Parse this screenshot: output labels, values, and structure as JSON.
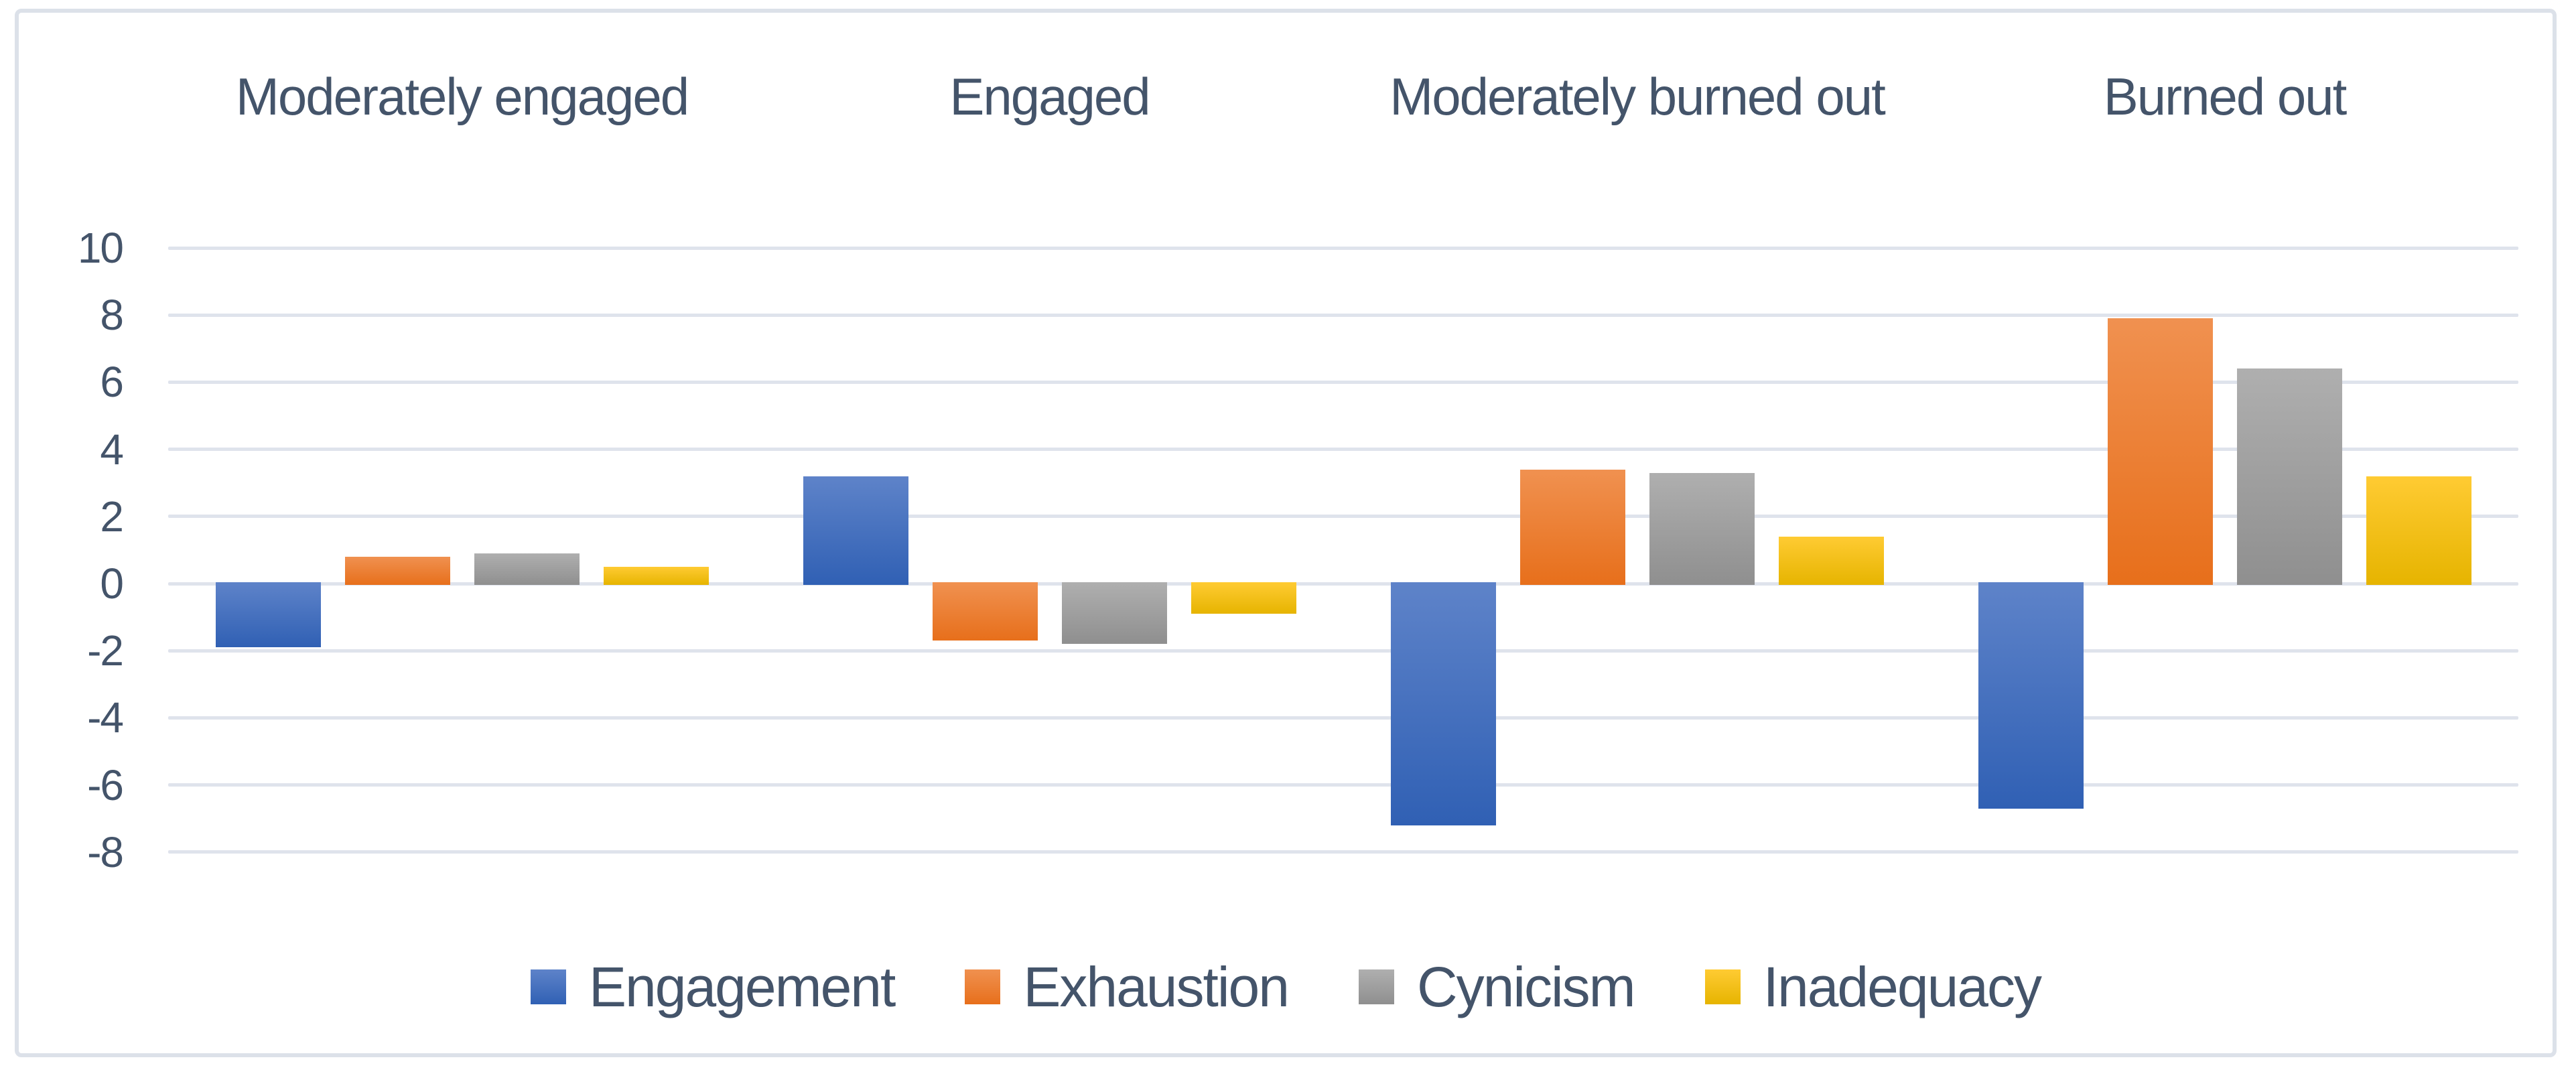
{
  "chart_data": {
    "type": "bar",
    "title": "",
    "xlabel": "",
    "ylabel": "",
    "categories": [
      "Moderately engaged",
      "Engaged",
      "Moderately burned out",
      "Burned out"
    ],
    "series": [
      {
        "name": "Engagement",
        "values": [
          -1.9,
          3.2,
          -7.2,
          -6.7
        ]
      },
      {
        "name": "Exhaustion",
        "values": [
          0.8,
          -1.7,
          3.4,
          7.9
        ]
      },
      {
        "name": "Cynicism",
        "values": [
          0.9,
          -1.8,
          3.3,
          6.4
        ]
      },
      {
        "name": "Inadequacy",
        "values": [
          0.5,
          -0.9,
          1.4,
          3.2
        ]
      }
    ],
    "y_ticks": [
      10,
      8,
      6,
      4,
      2,
      0,
      -2,
      -4,
      -6,
      -8
    ],
    "ylim": [
      -8,
      10
    ],
    "grid": true,
    "category_labels_position": "top",
    "legend_position": "bottom"
  },
  "styles": {
    "text_color": "#44546a",
    "grid_color": "#dfe3ec",
    "border_color": "#dce1e9",
    "series_colors": [
      {
        "name": "Engagement",
        "top": "#5e83c9",
        "bottom": "#3060b4"
      },
      {
        "name": "Exhaustion",
        "top": "#f09150",
        "bottom": "#e76f1b"
      },
      {
        "name": "Cynicism",
        "top": "#afafaf",
        "bottom": "#8f8f8f"
      },
      {
        "name": "Inadequacy",
        "top": "#ffcb33",
        "bottom": "#e6b400"
      }
    ]
  }
}
